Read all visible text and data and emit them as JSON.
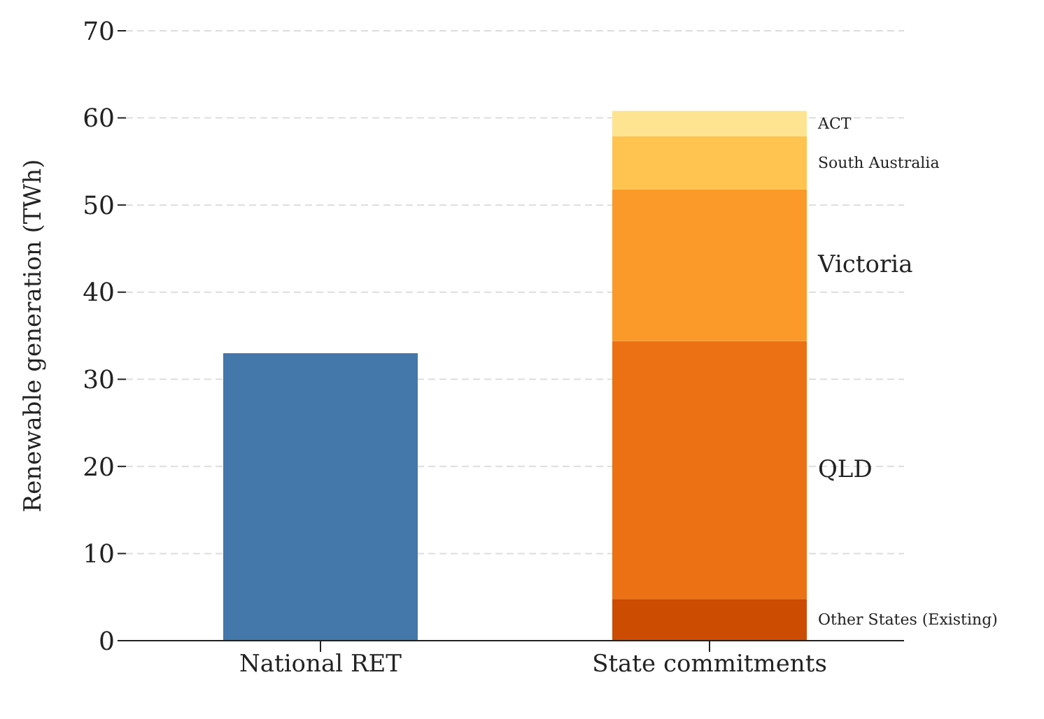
{
  "chart_data": {
    "type": "bar",
    "stacked": true,
    "ylabel": "Renewable generation (TWh)",
    "categories": [
      "National RET",
      "State commitments"
    ],
    "series": [
      {
        "color": "#4477aa",
        "values": [
          33,
          null
        ]
      },
      {
        "name": "Other States (Existing)",
        "color": "#cc4c02",
        "values": [
          null,
          4.8
        ]
      },
      {
        "name": "QLD",
        "color": "#ec7014",
        "values": [
          null,
          29.6
        ]
      },
      {
        "name": "Victoria",
        "color": "#fb9a29",
        "values": [
          null,
          17.4
        ]
      },
      {
        "name": "South Australia",
        "color": "#fec44f",
        "values": [
          null,
          6.1
        ]
      },
      {
        "name": "ACT",
        "color": "#fee391",
        "values": [
          null,
          2.9
        ]
      }
    ],
    "ylim": [
      0,
      70
    ],
    "yticks": [
      0,
      10,
      20,
      30,
      40,
      50,
      60,
      70
    ],
    "grid": "y",
    "legend": false
  }
}
